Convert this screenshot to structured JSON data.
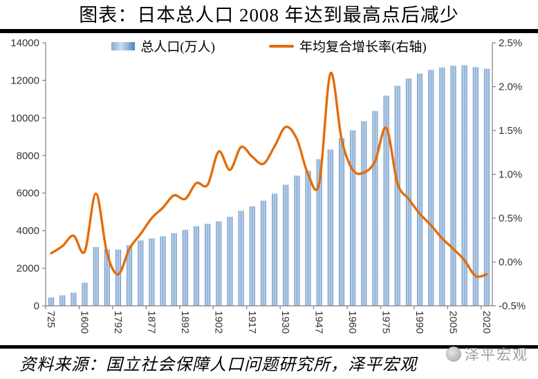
{
  "header": {
    "title": "图表：日本总人口 2008 年达到最高点后减少"
  },
  "legend": {
    "bar_label": "总人口(万人)",
    "line_label": "年均复合增长率(右轴)"
  },
  "footer": {
    "source": "资料来源：国立社会保障人口问题研究所，泽平宏观",
    "watermark": "泽平宏观"
  },
  "colors": {
    "bar_edge": "#4f81bd",
    "bar_mid": "#86abd4",
    "bar_light": "#cadbee",
    "line": "#e36c09",
    "axis_line": "#7f7f7f",
    "axis_text": "#333333",
    "rule": "#000000",
    "watermark_gray": "#9b9b9b"
  },
  "chart_data": {
    "type": "bar+line dual-axis",
    "title": "图表：日本总人口 2008 年达到最高点后减少",
    "n_bars": 40,
    "x_tick_labels": [
      "725",
      "1600",
      "1792",
      "1877",
      "1892",
      "1902",
      "1917",
      "1930",
      "1947",
      "1960",
      "1975",
      "1990",
      "2005",
      "2020"
    ],
    "x_label_interval": 3,
    "series": [
      {
        "name": "总人口(万人)",
        "type": "bar",
        "axis": "left",
        "values": [
          450,
          560,
          700,
          1230,
          3130,
          3010,
          2990,
          3230,
          3480,
          3590,
          3700,
          3870,
          4050,
          4240,
          4360,
          4500,
          4740,
          5060,
          5300,
          5600,
          5970,
          6450,
          6930,
          7190,
          7810,
          8320,
          8930,
          9340,
          9830,
          10370,
          11190,
          11710,
          12100,
          12360,
          12560,
          12690,
          12780,
          12810,
          12710,
          12620
        ]
      },
      {
        "name": "年均复合增长率(右轴)",
        "type": "line",
        "axis": "right",
        "unit": "%",
        "values": [
          0.1,
          0.18,
          0.3,
          0.12,
          0.78,
          0.1,
          -0.14,
          0.15,
          0.32,
          0.5,
          0.62,
          0.76,
          0.72,
          0.9,
          0.88,
          1.26,
          1.05,
          1.31,
          1.2,
          1.12,
          1.32,
          1.54,
          1.4,
          1.0,
          0.9,
          2.15,
          1.4,
          1.05,
          1.02,
          1.15,
          1.53,
          0.9,
          0.72,
          0.55,
          0.42,
          0.27,
          0.15,
          0.02,
          -0.16,
          -0.14
        ]
      }
    ],
    "left_axis": {
      "min": 0,
      "max": 14000,
      "step": 2000,
      "tick_labels": [
        "0",
        "2000",
        "4000",
        "6000",
        "8000",
        "10000",
        "12000",
        "14000"
      ]
    },
    "right_axis": {
      "min": -0.5,
      "max": 2.5,
      "step": 0.5,
      "tick_labels": [
        "-0.5%",
        "0.0%",
        "0.5%",
        "1.0%",
        "1.5%",
        "2.0%",
        "2.5%"
      ]
    },
    "grid": false,
    "legend_position": "top-center"
  }
}
